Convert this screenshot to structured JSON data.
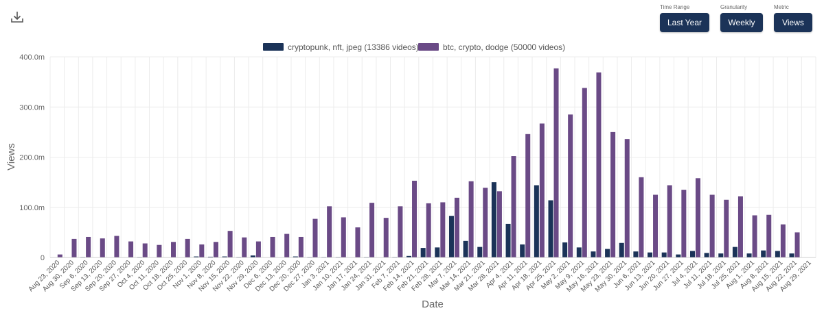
{
  "toolbar": {
    "download_icon": "download-icon",
    "controls": [
      {
        "caption": "Time Range",
        "value": "Last Year"
      },
      {
        "caption": "Granularity",
        "value": "Weekly"
      },
      {
        "caption": "Metric",
        "value": "Views"
      }
    ]
  },
  "colors": {
    "series_a": "#1b3358",
    "series_b": "#6a4a86",
    "grid": "#ececec",
    "button": "#1b3358"
  },
  "chart_data": {
    "type": "bar",
    "xlabel": "Date",
    "ylabel": "Views",
    "ylim": [
      0,
      400
    ],
    "yticks": [
      {
        "value": 0,
        "label": "0"
      },
      {
        "value": 100,
        "label": "100.0m"
      },
      {
        "value": 200,
        "label": "200.0m"
      },
      {
        "value": 300,
        "label": "300.0m"
      },
      {
        "value": 400,
        "label": "400.0m"
      }
    ],
    "legend_position": "top-center",
    "grid": true,
    "categories": [
      "Aug 23, 2020",
      "Aug 30, 2020",
      "Sep 6, 2020",
      "Sep 13, 2020",
      "Sep 20, 2020",
      "Sep 27, 2020",
      "Oct 4, 2020",
      "Oct 11, 2020",
      "Oct 18, 2020",
      "Oct 25, 2020",
      "Nov 1, 2020",
      "Nov 8, 2020",
      "Nov 15, 2020",
      "Nov 22, 2020",
      "Nov 29, 2020",
      "Dec 6, 2020",
      "Dec 13, 2020",
      "Dec 20, 2020",
      "Dec 27, 2020",
      "Jan 3, 2021",
      "Jan 10, 2021",
      "Jan 17, 2021",
      "Jan 24, 2021",
      "Jan 31, 2021",
      "Feb 7, 2021",
      "Feb 14, 2021",
      "Feb 21, 2021",
      "Feb 28, 2021",
      "Mar 7, 2021",
      "Mar 14, 2021",
      "Mar 21, 2021",
      "Mar 28, 2021",
      "Apr 4, 2021",
      "Apr 11, 2021",
      "Apr 18, 2021",
      "Apr 25, 2021",
      "May 2, 2021",
      "May 9, 2021",
      "May 16, 2021",
      "May 23, 2021",
      "May 30, 2021",
      "Jun 6, 2021",
      "Jun 13, 2021",
      "Jun 20, 2021",
      "Jun 27, 2021",
      "Jul 4, 2021",
      "Jul 11, 2021",
      "Jul 18, 2021",
      "Jul 25, 2021",
      "Aug 1, 2021",
      "Aug 8, 2021",
      "Aug 15, 2021",
      "Aug 22, 2021",
      "Aug 29, 2021"
    ],
    "series": [
      {
        "name": "cryptopunk, nft, jpeg (13386 videos)",
        "values": [
          0.5,
          0.5,
          1,
          0.5,
          0.5,
          0.5,
          1,
          0.5,
          0.5,
          0.5,
          2,
          1.5,
          2,
          1,
          4,
          0.5,
          0.5,
          2,
          1,
          1,
          1,
          0.5,
          1,
          0.5,
          1,
          3,
          19,
          20,
          83,
          33,
          21,
          150,
          67,
          26,
          144,
          114,
          30,
          20,
          12,
          17,
          29,
          12,
          10,
          10,
          6,
          13,
          9,
          8,
          21,
          8,
          14,
          13,
          8,
          0.5
        ]
      },
      {
        "name": "btc, crypto, dodge (50000 videos)",
        "values": [
          6,
          37,
          41,
          38,
          43,
          32,
          28,
          25,
          31,
          37,
          26,
          31,
          53,
          40,
          32,
          41,
          47,
          41,
          77,
          102,
          80,
          60,
          109,
          79,
          102,
          153,
          108,
          110,
          119,
          152,
          139,
          132,
          202,
          246,
          267,
          377,
          285,
          338,
          369,
          250,
          236,
          160,
          125,
          144,
          135,
          158,
          125,
          115,
          122,
          84,
          85,
          66,
          50,
          0
        ]
      }
    ]
  }
}
